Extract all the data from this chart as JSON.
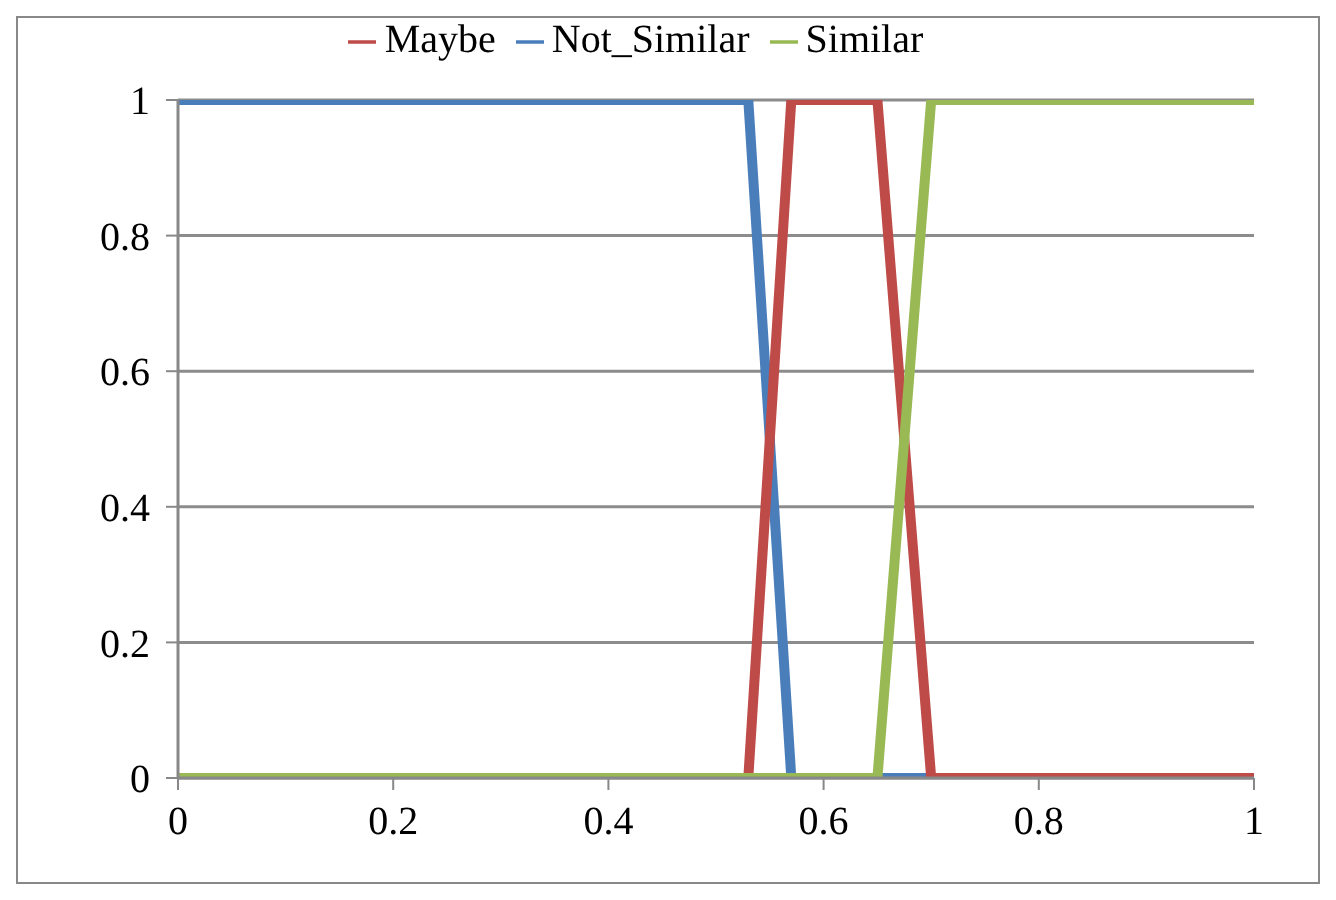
{
  "chart_data": {
    "type": "line",
    "xlim": [
      0,
      1
    ],
    "xticks": [
      0,
      0.2,
      0.4,
      0.6,
      0.8,
      1
    ],
    "ylim": [
      0,
      1
    ],
    "yticks": [
      0,
      0.2,
      0.4,
      0.6,
      0.8,
      1
    ],
    "grid": "y",
    "legend": "top",
    "marker": "none",
    "line_style": "solid",
    "series": [
      {
        "name": "Not_Similar",
        "color": "#4a7ebb",
        "x": [
          0,
          0.53,
          0.57,
          1
        ],
        "values": [
          1,
          1,
          0,
          0
        ]
      },
      {
        "name": "Maybe",
        "color": "#be4b48",
        "x": [
          0,
          0.53,
          0.57,
          0.65,
          0.7,
          1
        ],
        "values": [
          0,
          0,
          1,
          1,
          0,
          0
        ]
      },
      {
        "name": "Similar",
        "color": "#98b954",
        "x": [
          0,
          0.65,
          0.7,
          1
        ],
        "values": [
          0,
          0,
          1,
          1
        ]
      }
    ]
  }
}
